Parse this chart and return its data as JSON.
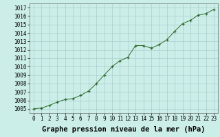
{
  "x": [
    0,
    1,
    2,
    3,
    4,
    5,
    6,
    7,
    8,
    9,
    10,
    11,
    12,
    13,
    14,
    15,
    16,
    17,
    18,
    19,
    20,
    21,
    22,
    23
  ],
  "y": [
    1005.0,
    1005.1,
    1005.4,
    1005.8,
    1006.1,
    1006.2,
    1006.6,
    1007.1,
    1008.0,
    1009.0,
    1010.0,
    1010.7,
    1011.1,
    1012.5,
    1012.5,
    1012.2,
    1012.6,
    1013.2,
    1014.2,
    1015.1,
    1015.5,
    1016.1,
    1016.3,
    1016.8
  ],
  "ylim": [
    1004.5,
    1017.5
  ],
  "xlim": [
    -0.5,
    23.5
  ],
  "yticks": [
    1005,
    1006,
    1007,
    1008,
    1009,
    1010,
    1011,
    1012,
    1013,
    1014,
    1015,
    1016,
    1017
  ],
  "xticks": [
    0,
    1,
    2,
    3,
    4,
    5,
    6,
    7,
    8,
    9,
    10,
    11,
    12,
    13,
    14,
    15,
    16,
    17,
    18,
    19,
    20,
    21,
    22,
    23
  ],
  "xlabel": "Graphe pression niveau de la mer (hPa)",
  "line_color": "#2d6a2d",
  "marker": "+",
  "bg_color": "#cceee8",
  "grid_color": "#aacccc",
  "tick_fontsize": 5.5,
  "xlabel_fontsize": 7.5
}
